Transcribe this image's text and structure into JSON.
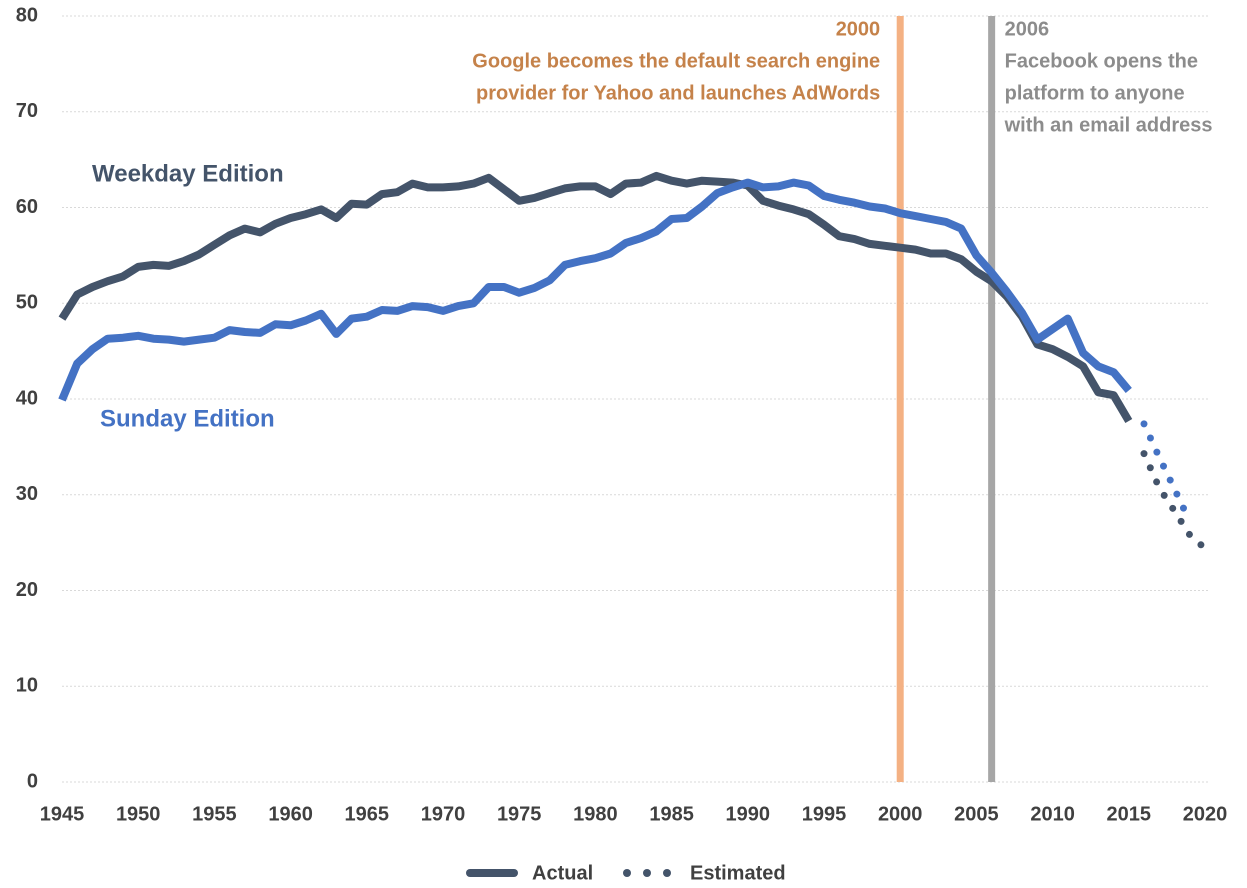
{
  "chart_data": {
    "type": "line",
    "x": [
      1945,
      1946,
      1947,
      1948,
      1949,
      1950,
      1951,
      1952,
      1953,
      1954,
      1955,
      1956,
      1957,
      1958,
      1959,
      1960,
      1961,
      1962,
      1963,
      1964,
      1965,
      1966,
      1967,
      1968,
      1969,
      1970,
      1971,
      1972,
      1973,
      1974,
      1975,
      1976,
      1977,
      1978,
      1979,
      1980,
      1981,
      1982,
      1983,
      1984,
      1985,
      1986,
      1987,
      1988,
      1989,
      1990,
      1991,
      1992,
      1993,
      1994,
      1995,
      1996,
      1997,
      1998,
      1999,
      2000,
      2001,
      2002,
      2003,
      2004,
      2005,
      2006,
      2007,
      2008,
      2009,
      2010,
      2011,
      2012,
      2013,
      2014,
      2015,
      2016,
      2017,
      2018,
      2019,
      2020
    ],
    "series": [
      {
        "name": "Weekday Edition",
        "color": "#44546a",
        "values": [
          48.4,
          50.9,
          51.7,
          52.3,
          52.8,
          53.8,
          54.0,
          53.9,
          54.4,
          55.1,
          56.1,
          57.1,
          57.8,
          57.4,
          58.3,
          58.9,
          59.3,
          59.8,
          58.9,
          60.4,
          60.3,
          61.4,
          61.6,
          62.5,
          62.1,
          62.1,
          62.2,
          62.5,
          63.1,
          61.9,
          60.7,
          61.0,
          61.5,
          62.0,
          62.2,
          62.2,
          61.4,
          62.5,
          62.6,
          63.3,
          62.8,
          62.5,
          62.8,
          62.7,
          62.6,
          62.3,
          60.7,
          60.2,
          59.8,
          59.3,
          58.2,
          57.0,
          56.7,
          56.2,
          56.0,
          55.8,
          55.6,
          55.2,
          55.2,
          54.6,
          53.3,
          52.3,
          50.7,
          48.6,
          45.7,
          45.2,
          44.4,
          43.4,
          40.7,
          40.4,
          37.7,
          null,
          null,
          null,
          null,
          null
        ],
        "estimated": [
          null,
          null,
          null,
          null,
          null,
          null,
          null,
          null,
          null,
          null,
          null,
          null,
          null,
          null,
          null,
          null,
          null,
          null,
          null,
          null,
          null,
          null,
          null,
          null,
          null,
          null,
          null,
          null,
          null,
          null,
          null,
          null,
          null,
          null,
          null,
          null,
          null,
          null,
          null,
          null,
          null,
          null,
          null,
          null,
          null,
          null,
          null,
          null,
          null,
          null,
          null,
          null,
          null,
          null,
          null,
          null,
          null,
          null,
          null,
          null,
          null,
          null,
          null,
          null,
          null,
          null,
          null,
          null,
          null,
          null,
          null,
          34.3,
          30.7,
          28.3,
          25.8,
          24.4
        ]
      },
      {
        "name": "Sunday Edition",
        "color": "#4472c4",
        "values": [
          39.9,
          43.7,
          45.2,
          46.3,
          46.4,
          46.6,
          46.3,
          46.2,
          46.0,
          46.2,
          46.4,
          47.2,
          47.0,
          46.9,
          47.8,
          47.7,
          48.2,
          48.9,
          46.8,
          48.4,
          48.6,
          49.3,
          49.2,
          49.7,
          49.6,
          49.2,
          49.7,
          50.0,
          51.7,
          51.7,
          51.1,
          51.6,
          52.4,
          54.0,
          54.4,
          54.7,
          55.2,
          56.3,
          56.8,
          57.5,
          58.8,
          58.9,
          60.1,
          61.5,
          62.1,
          62.6,
          62.1,
          62.2,
          62.6,
          62.3,
          61.2,
          60.8,
          60.5,
          60.1,
          59.9,
          59.4,
          59.1,
          58.8,
          58.5,
          57.8,
          55.0,
          53.2,
          51.2,
          49.0,
          46.2,
          47.3,
          48.4,
          44.8,
          43.4,
          42.8,
          40.9,
          null,
          null,
          null,
          null,
          null
        ],
        "estimated": [
          null,
          null,
          null,
          null,
          null,
          null,
          null,
          null,
          null,
          null,
          null,
          null,
          null,
          null,
          null,
          null,
          null,
          null,
          null,
          null,
          null,
          null,
          null,
          null,
          null,
          null,
          null,
          null,
          null,
          null,
          null,
          null,
          null,
          null,
          null,
          null,
          null,
          null,
          null,
          null,
          null,
          null,
          null,
          null,
          null,
          null,
          null,
          null,
          null,
          null,
          null,
          null,
          null,
          null,
          null,
          null,
          null,
          null,
          null,
          null,
          null,
          null,
          null,
          null,
          null,
          null,
          null,
          null,
          null,
          null,
          null,
          37.4,
          33.9,
          30.6,
          27.2,
          null
        ]
      }
    ],
    "annotations": [
      {
        "x": 2000,
        "color": "#f4b183",
        "text_color": "#c5824a",
        "align": "end",
        "lines": [
          "2000",
          "Google becomes the default search engine",
          "provider for Yahoo and launches AdWords"
        ]
      },
      {
        "x": 2006,
        "color": "#a6a6a6",
        "text_color": "#8c8c8c",
        "align": "start",
        "lines": [
          "2006",
          "Facebook opens the",
          "platform to anyone",
          "with an email address"
        ]
      }
    ],
    "legend": [
      "Actual",
      "Estimated"
    ],
    "xlim": [
      1945,
      2020
    ],
    "xticks": [
      1945,
      1950,
      1955,
      1960,
      1965,
      1970,
      1975,
      1980,
      1985,
      1990,
      1995,
      2000,
      2005,
      2010,
      2015,
      2020
    ],
    "ylim": [
      0,
      80
    ],
    "yticks": [
      0,
      10,
      20,
      30,
      40,
      50,
      60,
      70,
      80
    ],
    "grid": true
  }
}
